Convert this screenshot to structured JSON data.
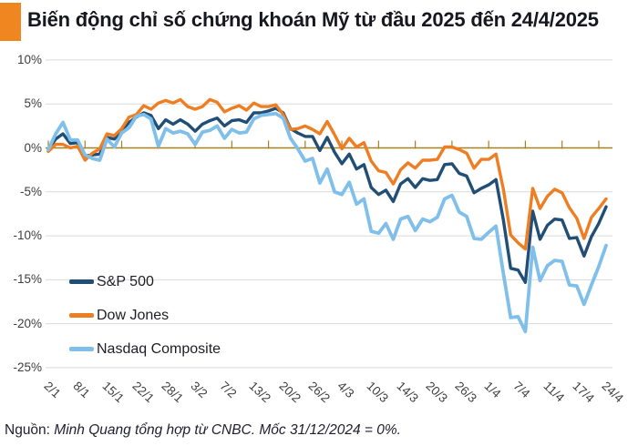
{
  "title": "Biến động chỉ số chứng khoán Mỹ từ đầu 2025 đến 24/4/2025",
  "footer": {
    "prefix": "Nguồn:",
    "text": " Minh Quang tổng hợp từ CNBC. Mốc 31/12/2024 = 0%."
  },
  "colors": {
    "accent_orange": "#F0861F",
    "gridline": "#D9D9D9",
    "zero_axis": "#A5821E",
    "axis_label": "#3D3D3D",
    "text": "#1D1D26"
  },
  "chart_data": {
    "type": "line",
    "title": "Biến động chỉ số chứng khoán Mỹ từ đầu 2025 đến 24/4/2025",
    "xlabel": "",
    "ylabel": "",
    "unit": "%",
    "baseline_note": "Mốc 31/12/2024 = 0%",
    "ylim": [
      -25,
      10
    ],
    "grid": true,
    "legend_position": "inside-bottom-left",
    "y_ticks": [
      {
        "label": "10%",
        "value": 10
      },
      {
        "label": "5%",
        "value": 5
      },
      {
        "label": "0%",
        "value": 0
      },
      {
        "label": "-5%",
        "value": -5
      },
      {
        "label": "-10%",
        "value": -10
      },
      {
        "label": "-15%",
        "value": -15
      },
      {
        "label": "-20%",
        "value": -20
      },
      {
        "label": "-25%",
        "value": -25
      }
    ],
    "x": [
      "2/1",
      "3/1",
      "6/1",
      "7/1",
      "8/1",
      "10/1",
      "13/1",
      "14/1",
      "15/1",
      "16/1",
      "17/1",
      "21/1",
      "22/1",
      "23/1",
      "24/1",
      "27/1",
      "28/1",
      "29/1",
      "30/1",
      "31/1",
      "3/2",
      "4/2",
      "5/2",
      "6/2",
      "7/2",
      "10/2",
      "11/2",
      "12/2",
      "13/2",
      "14/2",
      "18/2",
      "19/2",
      "20/2",
      "21/2",
      "24/2",
      "25/2",
      "26/2",
      "27/2",
      "28/2",
      "3/3",
      "4/3",
      "5/3",
      "6/3",
      "7/3",
      "10/3",
      "11/3",
      "12/3",
      "13/3",
      "14/3",
      "17/3",
      "18/3",
      "19/3",
      "20/3",
      "21/3",
      "24/3",
      "25/3",
      "26/3",
      "27/3",
      "28/3",
      "31/3",
      "1/4",
      "2/4",
      "3/4",
      "4/4",
      "7/4",
      "8/4",
      "9/4",
      "10/4",
      "11/4",
      "14/4",
      "15/4",
      "16/4",
      "17/4",
      "21/4",
      "22/4",
      "23/4",
      "24/4"
    ],
    "x_tick_labels": [
      "2/1",
      "8/1",
      "15/1",
      "22/1",
      "28/1",
      "3/2",
      "7/2",
      "13/2",
      "20/2",
      "26/2",
      "4/3",
      "10/3",
      "14/3",
      "20/3",
      "26/3",
      "1/4",
      "7/4",
      "11/4",
      "17/4",
      "24/4"
    ],
    "x_tick_indices": [
      0,
      4,
      8,
      12,
      16,
      20,
      24,
      28,
      32,
      36,
      40,
      44,
      48,
      52,
      56,
      60,
      64,
      68,
      72,
      76
    ],
    "series": [
      {
        "name": "S&P 500",
        "color": "#214E74",
        "stroke_width": 3.4,
        "values": [
          -0.2,
          1.0,
          1.6,
          0.5,
          0.6,
          -0.9,
          -0.8,
          -0.7,
          1.2,
          1.0,
          2.0,
          2.9,
          3.5,
          4.0,
          3.7,
          2.2,
          3.2,
          2.7,
          3.2,
          2.7,
          1.9,
          2.7,
          3.1,
          3.4,
          2.5,
          3.1,
          3.2,
          2.9,
          4.0,
          4.0,
          4.2,
          4.5,
          4.0,
          2.2,
          1.7,
          1.3,
          1.3,
          -0.3,
          1.2,
          -0.5,
          -1.8,
          -0.7,
          -2.4,
          -1.9,
          -4.5,
          -5.3,
          -4.8,
          -6.1,
          -4.1,
          -3.5,
          -4.5,
          -3.5,
          -3.7,
          -3.6,
          -1.9,
          -1.8,
          -2.9,
          -3.2,
          -5.1,
          -4.6,
          -4.2,
          -3.6,
          -8.2,
          -13.7,
          -13.9,
          -15.3,
          -7.2,
          -10.4,
          -8.8,
          -8.1,
          -8.2,
          -10.3,
          -10.2,
          -12.3,
          -10.1,
          -8.6,
          -6.7
        ]
      },
      {
        "name": "Dow Jones",
        "color": "#EF7E23",
        "stroke_width": 3.4,
        "values": [
          -0.4,
          0.4,
          0.4,
          0.0,
          0.2,
          -1.4,
          -0.6,
          -0.1,
          1.6,
          1.4,
          2.2,
          3.5,
          3.8,
          4.8,
          4.4,
          5.1,
          5.4,
          5.1,
          5.5,
          4.7,
          4.4,
          4.7,
          5.5,
          5.2,
          4.1,
          4.5,
          4.8,
          4.3,
          5.1,
          4.7,
          4.7,
          4.9,
          3.8,
          2.1,
          2.2,
          2.5,
          2.1,
          1.6,
          3.0,
          1.5,
          -0.1,
          1.1,
          0.1,
          0.6,
          -1.5,
          -2.6,
          -2.8,
          -4.1,
          -2.5,
          -1.7,
          -2.3,
          -1.4,
          -1.4,
          -1.3,
          0.1,
          0.1,
          -0.2,
          -0.6,
          -2.3,
          -1.3,
          -1.3,
          -0.7,
          -4.7,
          -9.9,
          -10.8,
          -11.5,
          -4.6,
          -6.9,
          -5.5,
          -4.7,
          -5.1,
          -6.8,
          -8.0,
          -10.3,
          -7.9,
          -6.9,
          -5.8
        ]
      },
      {
        "name": "Nasdaq Composite",
        "color": "#80BFEA",
        "stroke_width": 3.8,
        "values": [
          -0.2,
          1.6,
          2.9,
          0.9,
          0.9,
          -0.8,
          -1.2,
          -1.4,
          1.0,
          0.1,
          1.7,
          2.3,
          3.6,
          3.8,
          3.3,
          0.2,
          2.2,
          1.7,
          1.9,
          1.6,
          0.4,
          1.8,
          2.0,
          2.5,
          1.1,
          2.1,
          1.7,
          1.8,
          3.3,
          3.7,
          3.8,
          3.9,
          3.4,
          1.1,
          -0.1,
          -1.5,
          -1.2,
          -4.0,
          -2.4,
          -5.0,
          -5.3,
          -3.9,
          -6.4,
          -5.8,
          -9.5,
          -9.7,
          -8.6,
          -10.4,
          -8.1,
          -7.8,
          -9.4,
          -8.1,
          -8.4,
          -7.9,
          -5.8,
          -5.4,
          -7.3,
          -7.8,
          -10.3,
          -10.4,
          -9.6,
          -8.9,
          -14.3,
          -19.3,
          -19.2,
          -20.9,
          -11.3,
          -15.1,
          -13.4,
          -12.8,
          -12.9,
          -15.6,
          -15.7,
          -17.8,
          -15.6,
          -13.5,
          -11.1
        ]
      }
    ]
  }
}
